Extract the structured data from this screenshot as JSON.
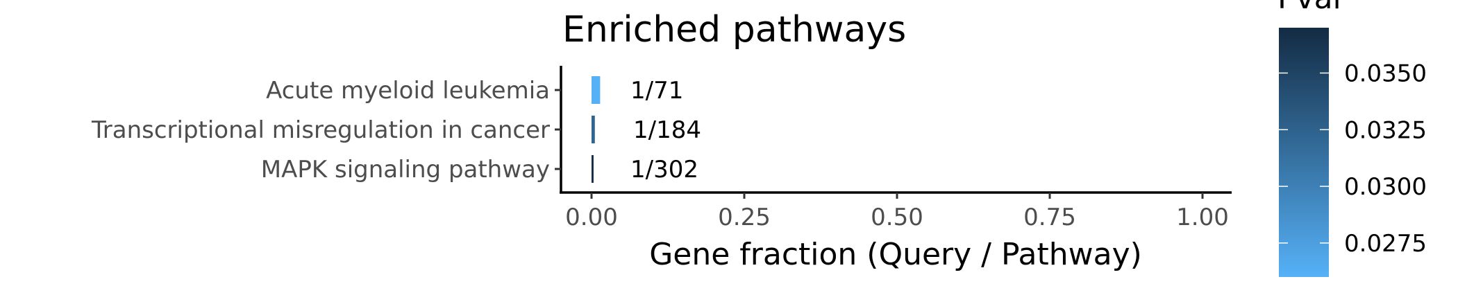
{
  "chart_data": {
    "type": "bar",
    "orientation": "horizontal",
    "title": "Enriched pathways",
    "xlabel": "Gene fraction (Query / Pathway)",
    "ylabel": "",
    "xlim": [
      0,
      1
    ],
    "x_ticks": [
      0,
      0.25,
      0.5,
      0.75,
      1
    ],
    "x_tick_labels": [
      "0.00",
      "0.25",
      "0.50",
      "0.75",
      "1.00"
    ],
    "grid": false,
    "legend": {
      "type": "colorbar",
      "title": "Pval",
      "placement": "right",
      "range": [
        0.026,
        0.037
      ],
      "ticks": [
        0.0275,
        0.03,
        0.0325,
        0.035
      ],
      "tick_labels": [
        "0.0275",
        "0.0300",
        "0.0325",
        "0.0350"
      ],
      "color_low": "#56b1f7",
      "color_high": "#132b43"
    },
    "categories": [
      "Acute myeloid leukemia",
      "Transcriptional misregulation in cancer",
      "MAPK signaling pathway"
    ],
    "values": [
      0.01408,
      0.00543,
      0.00331
    ],
    "pvals": [
      0.0261,
      0.0322,
      0.0369
    ],
    "labels": [
      "1/71",
      "1/184",
      "1/302"
    ]
  }
}
